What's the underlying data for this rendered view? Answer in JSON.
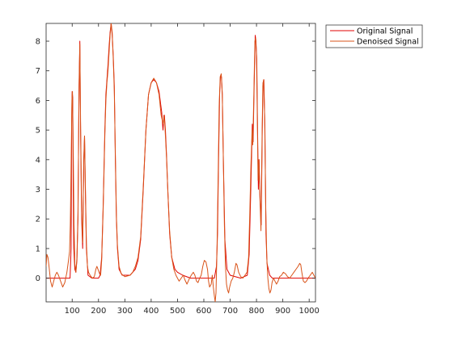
{
  "figure": {
    "background": "#ffffff"
  },
  "chart_data": {
    "type": "line",
    "title": "",
    "xlabel": "",
    "ylabel": "",
    "xlim": [
      1,
      1024
    ],
    "ylim": [
      -0.8,
      8.6
    ],
    "xticks": [
      100,
      200,
      300,
      400,
      500,
      600,
      700,
      800,
      900,
      1000
    ],
    "yticks": [
      0,
      1,
      2,
      3,
      4,
      5,
      6,
      7,
      8
    ],
    "grid": false,
    "box": true,
    "legend": {
      "placement": "outside-top-right"
    },
    "series": [
      {
        "name": "Original Signal",
        "color": "#e00000",
        "points": [
          [
            1,
            0.0
          ],
          [
            92,
            0.0
          ],
          [
            96,
            1.0
          ],
          [
            98,
            5.2
          ],
          [
            100,
            6.3
          ],
          [
            102,
            6.1
          ],
          [
            104,
            3.0
          ],
          [
            106,
            1.0
          ],
          [
            110,
            0.3
          ],
          [
            114,
            0.2
          ],
          [
            118,
            0.6
          ],
          [
            122,
            2.0
          ],
          [
            126,
            6.5
          ],
          [
            129,
            8.0
          ],
          [
            132,
            5.0
          ],
          [
            136,
            2.0
          ],
          [
            140,
            1.0
          ],
          [
            144,
            4.0
          ],
          [
            147,
            4.8
          ],
          [
            150,
            3.0
          ],
          [
            154,
            1.0
          ],
          [
            160,
            0.1
          ],
          [
            175,
            0.0
          ],
          [
            192,
            0.0
          ],
          [
            200,
            0.0
          ],
          [
            206,
            0.1
          ],
          [
            212,
            0.7
          ],
          [
            218,
            2.5
          ],
          [
            224,
            5.0
          ],
          [
            228,
            6.2
          ],
          [
            232,
            6.7
          ],
          [
            236,
            7.2
          ],
          [
            240,
            7.8
          ],
          [
            244,
            8.3
          ],
          [
            248,
            8.6
          ],
          [
            252,
            8.2
          ],
          [
            256,
            7.5
          ],
          [
            260,
            6.5
          ],
          [
            264,
            4.0
          ],
          [
            268,
            2.0
          ],
          [
            272,
            1.0
          ],
          [
            278,
            0.3
          ],
          [
            290,
            0.1
          ],
          [
            320,
            0.1
          ],
          [
            340,
            0.3
          ],
          [
            350,
            0.6
          ],
          [
            360,
            1.3
          ],
          [
            370,
            3.0
          ],
          [
            380,
            5.0
          ],
          [
            390,
            6.2
          ],
          [
            400,
            6.6
          ],
          [
            410,
            6.7
          ],
          [
            420,
            6.6
          ],
          [
            430,
            6.3
          ],
          [
            440,
            5.6
          ],
          [
            445,
            5.0
          ],
          [
            448,
            5.4
          ],
          [
            450,
            5.5
          ],
          [
            454,
            5.0
          ],
          [
            458,
            4.2
          ],
          [
            463,
            3.0
          ],
          [
            470,
            1.5
          ],
          [
            478,
            0.7
          ],
          [
            490,
            0.3
          ],
          [
            500,
            0.2
          ],
          [
            520,
            0.1
          ],
          [
            550,
            0.0
          ],
          [
            640,
            0.0
          ],
          [
            648,
            0.4
          ],
          [
            652,
            1.5
          ],
          [
            656,
            4.0
          ],
          [
            660,
            6.2
          ],
          [
            663,
            6.8
          ],
          [
            667,
            6.8
          ],
          [
            670,
            6.2
          ],
          [
            674,
            4.0
          ],
          [
            680,
            1.3
          ],
          [
            688,
            0.3
          ],
          [
            700,
            0.1
          ],
          [
            740,
            0.0
          ],
          [
            765,
            0.1
          ],
          [
            772,
            0.8
          ],
          [
            777,
            2.5
          ],
          [
            781,
            4.0
          ],
          [
            784,
            5.2
          ],
          [
            787,
            4.6
          ],
          [
            791,
            6.5
          ],
          [
            795,
            8.2
          ],
          [
            798,
            8.0
          ],
          [
            801,
            7.4
          ],
          [
            804,
            5.0
          ],
          [
            807,
            3.0
          ],
          [
            810,
            4.0
          ],
          [
            813,
            2.8
          ],
          [
            818,
            1.8
          ],
          [
            822,
            5.0
          ],
          [
            825,
            6.6
          ],
          [
            828,
            6.7
          ],
          [
            832,
            5.0
          ],
          [
            836,
            1.5
          ],
          [
            840,
            0.5
          ],
          [
            850,
            0.1
          ],
          [
            860,
            0.0
          ],
          [
            1024,
            0.0
          ]
        ]
      },
      {
        "name": "Denoised Signal",
        "color": "#d95319",
        "points": [
          [
            1,
            0.4
          ],
          [
            4,
            0.8
          ],
          [
            8,
            0.7
          ],
          [
            12,
            0.4
          ],
          [
            18,
            -0.1
          ],
          [
            24,
            -0.3
          ],
          [
            30,
            -0.1
          ],
          [
            36,
            0.1
          ],
          [
            42,
            0.2
          ],
          [
            48,
            0.1
          ],
          [
            56,
            -0.1
          ],
          [
            64,
            -0.3
          ],
          [
            72,
            -0.15
          ],
          [
            80,
            0.2
          ],
          [
            86,
            0.6
          ],
          [
            90,
            0.9
          ],
          [
            93,
            1.8
          ],
          [
            96,
            3.8
          ],
          [
            99,
            6.0
          ],
          [
            101,
            6.3
          ],
          [
            104,
            4.5
          ],
          [
            107,
            1.8
          ],
          [
            110,
            0.5
          ],
          [
            114,
            0.2
          ],
          [
            118,
            0.7
          ],
          [
            122,
            2.2
          ],
          [
            126,
            6.3
          ],
          [
            129,
            7.9
          ],
          [
            132,
            5.3
          ],
          [
            136,
            2.3
          ],
          [
            140,
            1.2
          ],
          [
            144,
            3.8
          ],
          [
            147,
            4.8
          ],
          [
            150,
            3.2
          ],
          [
            154,
            1.2
          ],
          [
            158,
            0.4
          ],
          [
            162,
            0.2
          ],
          [
            168,
            0.1
          ],
          [
            176,
            0.0
          ],
          [
            184,
            0.05
          ],
          [
            190,
            0.3
          ],
          [
            194,
            0.4
          ],
          [
            198,
            0.3
          ],
          [
            204,
            0.15
          ],
          [
            208,
            0.1
          ],
          [
            212,
            0.6
          ],
          [
            218,
            2.4
          ],
          [
            224,
            4.8
          ],
          [
            228,
            6.0
          ],
          [
            232,
            6.6
          ],
          [
            236,
            7.0
          ],
          [
            240,
            7.6
          ],
          [
            244,
            8.2
          ],
          [
            248,
            8.6
          ],
          [
            252,
            8.3
          ],
          [
            256,
            7.4
          ],
          [
            260,
            6.3
          ],
          [
            264,
            4.2
          ],
          [
            268,
            2.1
          ],
          [
            272,
            1.1
          ],
          [
            278,
            0.4
          ],
          [
            286,
            0.15
          ],
          [
            300,
            0.05
          ],
          [
            320,
            0.1
          ],
          [
            330,
            0.2
          ],
          [
            340,
            0.4
          ],
          [
            350,
            0.7
          ],
          [
            360,
            1.4
          ],
          [
            370,
            3.1
          ],
          [
            380,
            5.0
          ],
          [
            390,
            6.2
          ],
          [
            400,
            6.6
          ],
          [
            410,
            6.75
          ],
          [
            420,
            6.6
          ],
          [
            430,
            6.2
          ],
          [
            438,
            5.5
          ],
          [
            443,
            5.3
          ],
          [
            446,
            5.2
          ],
          [
            448,
            5.5
          ],
          [
            451,
            5.3
          ],
          [
            454,
            4.8
          ],
          [
            458,
            4.1
          ],
          [
            463,
            3.0
          ],
          [
            470,
            1.6
          ],
          [
            478,
            0.7
          ],
          [
            486,
            0.3
          ],
          [
            494,
            0.1
          ],
          [
            500,
            0.0
          ],
          [
            506,
            -0.1
          ],
          [
            514,
            0.0
          ],
          [
            522,
            0.1
          ],
          [
            528,
            -0.05
          ],
          [
            536,
            -0.2
          ],
          [
            546,
            0.0
          ],
          [
            552,
            0.1
          ],
          [
            560,
            0.2
          ],
          [
            566,
            0.1
          ],
          [
            572,
            -0.1
          ],
          [
            578,
            -0.15
          ],
          [
            584,
            0.0
          ],
          [
            590,
            0.1
          ],
          [
            596,
            0.4
          ],
          [
            602,
            0.6
          ],
          [
            608,
            0.55
          ],
          [
            614,
            0.3
          ],
          [
            618,
            -0.1
          ],
          [
            622,
            -0.3
          ],
          [
            628,
            -0.2
          ],
          [
            632,
            0.1
          ],
          [
            636,
            -0.3
          ],
          [
            640,
            -0.6
          ],
          [
            643,
            -0.8
          ],
          [
            646,
            -0.5
          ],
          [
            650,
            1.0
          ],
          [
            654,
            3.3
          ],
          [
            658,
            5.8
          ],
          [
            662,
            6.8
          ],
          [
            666,
            6.9
          ],
          [
            670,
            6.2
          ],
          [
            674,
            4.0
          ],
          [
            678,
            1.8
          ],
          [
            682,
            0.4
          ],
          [
            686,
            -0.2
          ],
          [
            690,
            -0.4
          ],
          [
            694,
            -0.5
          ],
          [
            698,
            -0.3
          ],
          [
            704,
            -0.1
          ],
          [
            710,
            0.0
          ],
          [
            716,
            0.2
          ],
          [
            722,
            0.5
          ],
          [
            726,
            0.45
          ],
          [
            732,
            0.2
          ],
          [
            740,
            0.05
          ],
          [
            748,
            0.0
          ],
          [
            756,
            0.1
          ],
          [
            764,
            0.2
          ],
          [
            770,
            0.7
          ],
          [
            775,
            2.3
          ],
          [
            779,
            3.8
          ],
          [
            783,
            5.0
          ],
          [
            786,
            4.5
          ],
          [
            790,
            6.2
          ],
          [
            794,
            8.0
          ],
          [
            797,
            8.1
          ],
          [
            800,
            7.5
          ],
          [
            803,
            5.4
          ],
          [
            806,
            3.3
          ],
          [
            809,
            4.0
          ],
          [
            812,
            3.0
          ],
          [
            817,
            1.6
          ],
          [
            821,
            4.6
          ],
          [
            824,
            6.5
          ],
          [
            827,
            6.7
          ],
          [
            831,
            5.4
          ],
          [
            835,
            2.4
          ],
          [
            839,
            0.7
          ],
          [
            843,
            0.0
          ],
          [
            847,
            -0.35
          ],
          [
            851,
            -0.5
          ],
          [
            855,
            -0.4
          ],
          [
            859,
            -0.15
          ],
          [
            865,
            0.0
          ],
          [
            870,
            -0.1
          ],
          [
            876,
            -0.2
          ],
          [
            882,
            -0.1
          ],
          [
            888,
            0.05
          ],
          [
            895,
            0.1
          ],
          [
            902,
            0.2
          ],
          [
            910,
            0.15
          ],
          [
            918,
            0.05
          ],
          [
            926,
            0.0
          ],
          [
            934,
            0.1
          ],
          [
            942,
            0.2
          ],
          [
            950,
            0.3
          ],
          [
            958,
            0.4
          ],
          [
            964,
            0.5
          ],
          [
            968,
            0.45
          ],
          [
            972,
            0.2
          ],
          [
            978,
            -0.1
          ],
          [
            984,
            -0.15
          ],
          [
            990,
            -0.1
          ],
          [
            996,
            0.0
          ],
          [
            1004,
            0.1
          ],
          [
            1012,
            0.2
          ],
          [
            1018,
            0.1
          ],
          [
            1024,
            0.0
          ]
        ]
      }
    ]
  }
}
